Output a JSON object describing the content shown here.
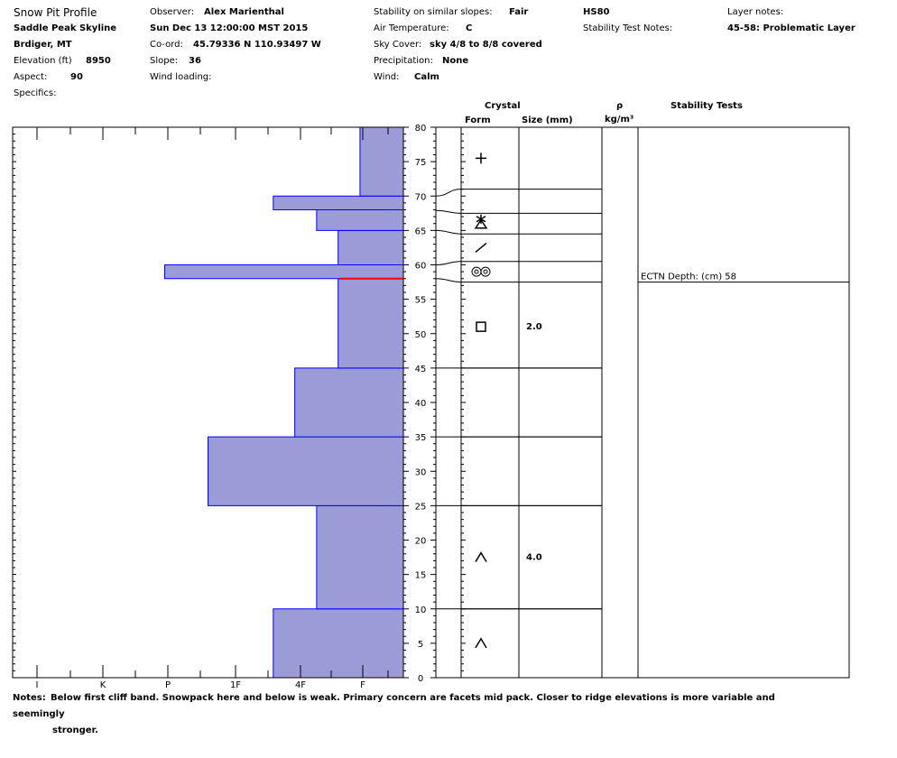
{
  "header": {
    "title": "Snow Pit Profile",
    "location": "Saddle Peak Skyline",
    "region": "Brdiger, MT",
    "elevation_label": "Elevation (ft)",
    "elevation_value": "8950",
    "aspect_label": "Aspect:",
    "aspect_value": "90",
    "specifics_label": "Specifics:",
    "observer_label": "Observer:",
    "observer_value": "Alex Marienthal",
    "datetime": "Sun Dec 13 12:00:00 MST 2015",
    "coord_label": "Co-ord:",
    "coord_value": "45.79336 N 110.93497 W",
    "slope_label": "Slope:",
    "slope_value": "36",
    "wind_loading_label": "Wind loading:",
    "stability_label": "Stability on similar slopes:",
    "stability_value": "Fair",
    "air_temp_label": "Air Temperature:",
    "air_temp_value": "C",
    "sky_label": "Sky Cover:",
    "sky_value": "sky 4/8 to 8/8 covered",
    "precip_label": "Precipitation:",
    "precip_value": "None",
    "wind_label": "Wind:",
    "wind_value": "Calm",
    "hs": "HS80",
    "stability_test_notes_label": "Stability Test Notes:",
    "layer_notes_label": "Layer notes:",
    "layer_notes_value": "45-58: Problematic Layer"
  },
  "columns": {
    "crystal": "Crystal",
    "form": "Form",
    "size": "Size (mm)",
    "rho": "ρ",
    "density_unit": "kg/m³",
    "stability_tests": "Stability Tests"
  },
  "notes": {
    "label": "Notes:",
    "line1": "Below first cliff band. Snowpack here and below is weak. Primary concern are facets mid pack. Closer to ridge elevations is more variable and seemingly",
    "line2": "stronger."
  },
  "chart_data": {
    "type": "bar",
    "orientation": "horizontal",
    "height_axis": {
      "min": 0,
      "max": 80,
      "ticks": [
        0,
        5,
        10,
        15,
        20,
        25,
        30,
        35,
        40,
        45,
        50,
        55,
        60,
        65,
        70,
        75,
        80
      ]
    },
    "hardness_axis": {
      "ticks": [
        "I",
        "K",
        "P",
        "1F",
        "4F",
        "F"
      ]
    },
    "layers": [
      {
        "bottom": 0,
        "top": 10,
        "hardness": "4F"
      },
      {
        "bottom": 10,
        "top": 25,
        "hardness": "4F-"
      },
      {
        "bottom": 25,
        "top": 35,
        "hardness": "1F-"
      },
      {
        "bottom": 35,
        "top": 45,
        "hardness": "4F"
      },
      {
        "bottom": 45,
        "top": 58,
        "hardness": "F+"
      },
      {
        "bottom": 58,
        "top": 60,
        "hardness": "P"
      },
      {
        "bottom": 60,
        "top": 65,
        "hardness": "F+"
      },
      {
        "bottom": 65,
        "top": 68,
        "hardness": "4F-"
      },
      {
        "bottom": 68,
        "top": 70,
        "hardness": "4F"
      },
      {
        "bottom": 70,
        "top": 80,
        "hardness": "F-"
      }
    ],
    "hardness_fraction": [
      0.333,
      0.222,
      0.5,
      0.278,
      0.167,
      0.611,
      0.167,
      0.222,
      0.333,
      0.111
    ],
    "problem_layer_depth": 58,
    "layer_boundaries": [
      10,
      25,
      35,
      45,
      57.5,
      60.5,
      64.5,
      67.5,
      71
    ],
    "crystals": [
      {
        "depth": 75.5,
        "form": "precipitation-particles",
        "size": ""
      },
      {
        "depth": 66,
        "form": "decomposing-particles-with-facets",
        "size": ""
      },
      {
        "depth": 62.5,
        "form": "needles-line",
        "size": ""
      },
      {
        "depth": 59,
        "form": "rounded-grains-pair",
        "size": ""
      },
      {
        "depth": 51,
        "form": "faceted-crystals",
        "size": "2.0"
      },
      {
        "depth": 17.5,
        "form": "depth-hoar",
        "size": "4.0"
      },
      {
        "depth": 5,
        "form": "depth-hoar",
        "size": ""
      }
    ],
    "stability_tests": [
      {
        "depth": 57.5,
        "text": "ECTN   Depth: (cm) 58"
      }
    ],
    "colors": {
      "bar_fill": "#9b9bd7",
      "bar_edge": "#0000ff",
      "problem_line": "#ff0000"
    }
  }
}
